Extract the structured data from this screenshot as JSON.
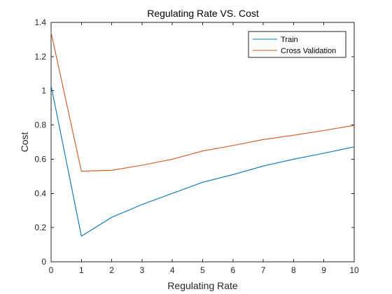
{
  "chart_data": {
    "type": "line",
    "title": "Regulating Rate VS. Cost",
    "xlabel": "Regulating Rate",
    "ylabel": "Cost",
    "xlim": [
      0,
      10
    ],
    "ylim": [
      0,
      1.4
    ],
    "xticks": [
      0,
      1,
      2,
      3,
      4,
      5,
      6,
      7,
      8,
      9,
      10
    ],
    "yticks": [
      0,
      0.2,
      0.4,
      0.6,
      0.8,
      1,
      1.2,
      1.4
    ],
    "grid": false,
    "legend_position": "top-right",
    "x": [
      0,
      1,
      2,
      3,
      4,
      5,
      6,
      7,
      8,
      9,
      10
    ],
    "series": [
      {
        "name": "Train",
        "color": "#0072BD",
        "values": [
          1.03,
          0.15,
          0.26,
          0.335,
          0.4,
          0.465,
          0.51,
          0.56,
          0.6,
          0.635,
          0.672
        ]
      },
      {
        "name": "Cross Validation",
        "color": "#D95319",
        "values": [
          1.34,
          0.53,
          0.535,
          0.565,
          0.6,
          0.648,
          0.68,
          0.715,
          0.74,
          0.768,
          0.798
        ]
      }
    ]
  }
}
